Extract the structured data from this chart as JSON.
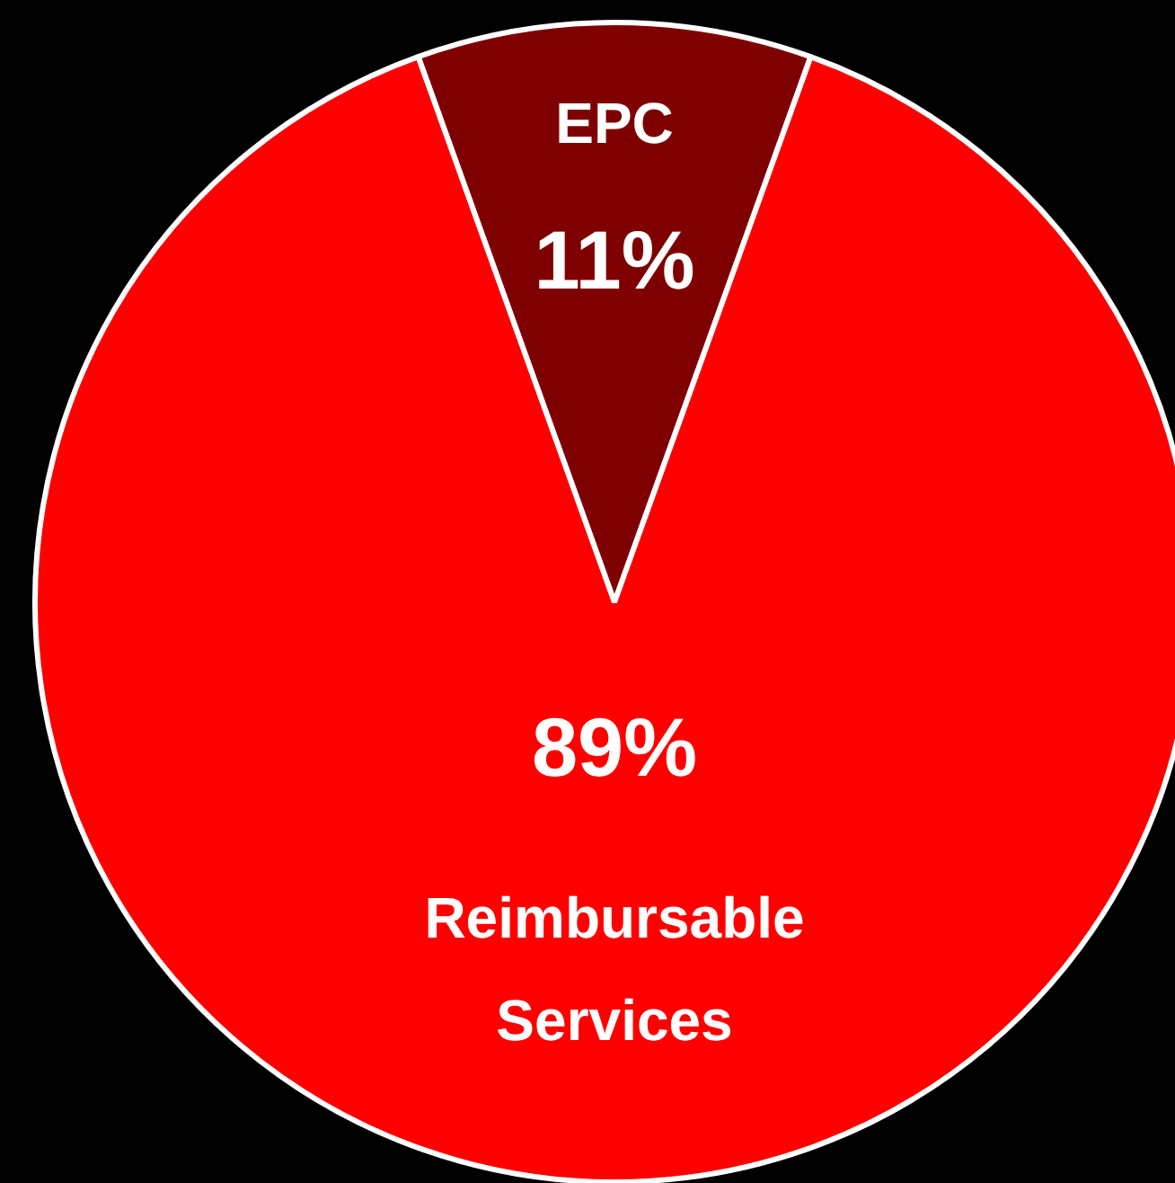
{
  "chart_data": {
    "type": "pie",
    "categories": [
      "EPC",
      "Reimbursable Services"
    ],
    "values": [
      11,
      89
    ],
    "colors": [
      "#7f0000",
      "#ff0000"
    ],
    "value_labels": [
      "11%",
      "89%"
    ],
    "legend": false
  }
}
